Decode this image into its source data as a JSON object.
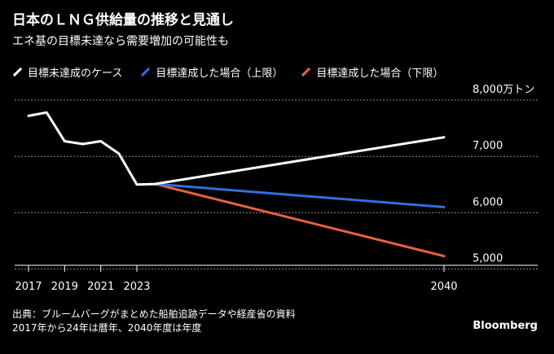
{
  "title": "日本のＬＮＧ供給量の推移と見通し",
  "subtitle": "エネ基の目標未達なら需要増加の可能性も",
  "footer": {
    "source": "出典：ブルームバーグがまとめた船舶追跡データや経産省の資料",
    "note": "2017年から24年は暦年、2040年度は年度"
  },
  "brand": "Bloomberg",
  "chart_data": {
    "type": "line",
    "ylabel": "",
    "ylim": [
      4800,
      8000
    ],
    "xlim": [
      2017,
      2040
    ],
    "y_ticks": [
      {
        "value": 8000,
        "label": "8,000万トン"
      },
      {
        "value": 7000,
        "label": "7,000"
      },
      {
        "value": 6000,
        "label": "6,000"
      },
      {
        "value": 5000,
        "label": "5,000"
      }
    ],
    "x_ticks": [
      {
        "value": 2017,
        "label": "2017"
      },
      {
        "value": 2019,
        "label": "2019"
      },
      {
        "value": 2021,
        "label": "2021"
      },
      {
        "value": 2023,
        "label": "2023"
      },
      {
        "value": 2040,
        "label": "2040"
      }
    ],
    "grid": true,
    "legend_position": "top-left",
    "series": [
      {
        "name": "目標未達成のケース",
        "color": "#ffffff",
        "points": [
          [
            2017,
            7720
          ],
          [
            2018,
            7780
          ],
          [
            2019,
            7270
          ],
          [
            2020,
            7220
          ],
          [
            2021,
            7270
          ],
          [
            2022,
            7050
          ],
          [
            2023,
            6500
          ],
          [
            2024,
            6510
          ],
          [
            2040,
            7340
          ]
        ]
      },
      {
        "name": "目標達成した場合（上限）",
        "color": "#2f6fe0",
        "points": [
          [
            2024,
            6510
          ],
          [
            2040,
            6100
          ]
        ]
      },
      {
        "name": "目標達成した場合（下限）",
        "color": "#e8623d",
        "points": [
          [
            2024,
            6510
          ],
          [
            2040,
            5230
          ]
        ]
      }
    ]
  }
}
